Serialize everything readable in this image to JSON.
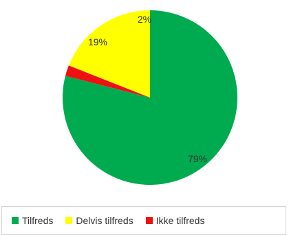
{
  "chart_data": {
    "type": "pie",
    "title": "",
    "start_angle_deg": 0,
    "direction": "clockwise",
    "legend_position": "bottom",
    "slices": [
      {
        "name": "Tilfreds",
        "value": 79,
        "label": "79%",
        "color": "#00aa4f"
      },
      {
        "name": "Ikke tilfreds",
        "value": 2,
        "label": "2%",
        "color": "#ee1111"
      },
      {
        "name": "Delvis tilfreds",
        "value": 19,
        "label": "19%",
        "color": "#ffff00"
      }
    ],
    "legend": [
      {
        "name": "Tilfreds",
        "color": "#00aa4f"
      },
      {
        "name": "Delvis tilfreds",
        "color": "#ffff00"
      },
      {
        "name": "Ikke tilfreds",
        "color": "#ee1111"
      }
    ]
  }
}
